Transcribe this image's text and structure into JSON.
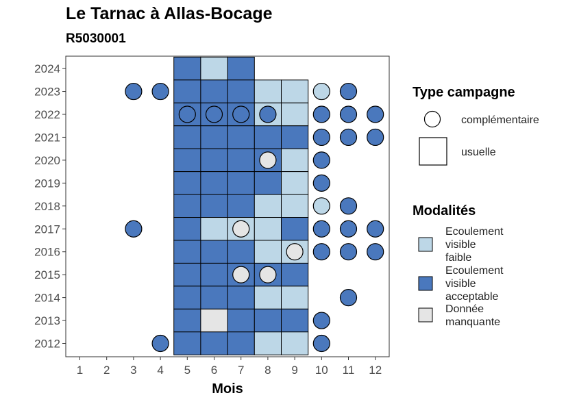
{
  "chart_data": {
    "type": "heatmap",
    "title": "Le Tarnac à Allas-Bocage",
    "subtitle": "R5030001",
    "xlabel": "Mois",
    "ylabel": "",
    "x_ticks": [
      "1",
      "2",
      "3",
      "4",
      "5",
      "6",
      "7",
      "8",
      "9",
      "10",
      "11",
      "12"
    ],
    "y_ticks": [
      "2012",
      "2013",
      "2014",
      "2015",
      "2016",
      "2017",
      "2018",
      "2019",
      "2020",
      "2021",
      "2022",
      "2023",
      "2024"
    ],
    "xlim": [
      0.5,
      12.5
    ],
    "ylim": [
      2011.5,
      2024.5
    ],
    "grid": false,
    "legend_position": "right",
    "colors": {
      "faible": "#bdd7e7",
      "acceptable": "#4a78bd",
      "manquante": "#e5e5e5"
    },
    "legends": {
      "type": {
        "title": "Type campagne",
        "items": [
          {
            "key": "complementaire",
            "label": "complémentaire",
            "shape": "circle"
          },
          {
            "key": "usuelle",
            "label": "usuelle",
            "shape": "square"
          }
        ]
      },
      "modalites": {
        "title": "Modalités",
        "items": [
          {
            "key": "faible",
            "label_lines": [
              "Ecoulement",
              "visible",
              "faible"
            ]
          },
          {
            "key": "acceptable",
            "label_lines": [
              "Ecoulement",
              "visible",
              "acceptable"
            ]
          },
          {
            "key": "manquante",
            "label_lines": [
              "Donnée",
              "manquante"
            ]
          }
        ]
      }
    },
    "squares": [
      {
        "year": 2024,
        "month": 5,
        "mod": "acceptable"
      },
      {
        "year": 2024,
        "month": 6,
        "mod": "faible"
      },
      {
        "year": 2024,
        "month": 7,
        "mod": "acceptable"
      },
      {
        "year": 2023,
        "month": 5,
        "mod": "acceptable"
      },
      {
        "year": 2023,
        "month": 6,
        "mod": "acceptable"
      },
      {
        "year": 2023,
        "month": 7,
        "mod": "acceptable"
      },
      {
        "year": 2023,
        "month": 8,
        "mod": "faible"
      },
      {
        "year": 2023,
        "month": 9,
        "mod": "faible"
      },
      {
        "year": 2022,
        "month": 5,
        "mod": "acceptable"
      },
      {
        "year": 2022,
        "month": 6,
        "mod": "acceptable"
      },
      {
        "year": 2022,
        "month": 7,
        "mod": "acceptable"
      },
      {
        "year": 2022,
        "month": 8,
        "mod": "faible"
      },
      {
        "year": 2022,
        "month": 9,
        "mod": "faible"
      },
      {
        "year": 2021,
        "month": 5,
        "mod": "acceptable"
      },
      {
        "year": 2021,
        "month": 6,
        "mod": "acceptable"
      },
      {
        "year": 2021,
        "month": 7,
        "mod": "acceptable"
      },
      {
        "year": 2021,
        "month": 8,
        "mod": "acceptable"
      },
      {
        "year": 2021,
        "month": 9,
        "mod": "acceptable"
      },
      {
        "year": 2020,
        "month": 5,
        "mod": "acceptable"
      },
      {
        "year": 2020,
        "month": 6,
        "mod": "acceptable"
      },
      {
        "year": 2020,
        "month": 7,
        "mod": "acceptable"
      },
      {
        "year": 2020,
        "month": 8,
        "mod": "acceptable"
      },
      {
        "year": 2020,
        "month": 9,
        "mod": "faible"
      },
      {
        "year": 2019,
        "month": 5,
        "mod": "acceptable"
      },
      {
        "year": 2019,
        "month": 6,
        "mod": "acceptable"
      },
      {
        "year": 2019,
        "month": 7,
        "mod": "acceptable"
      },
      {
        "year": 2019,
        "month": 8,
        "mod": "acceptable"
      },
      {
        "year": 2019,
        "month": 9,
        "mod": "faible"
      },
      {
        "year": 2018,
        "month": 5,
        "mod": "acceptable"
      },
      {
        "year": 2018,
        "month": 6,
        "mod": "acceptable"
      },
      {
        "year": 2018,
        "month": 7,
        "mod": "acceptable"
      },
      {
        "year": 2018,
        "month": 8,
        "mod": "faible"
      },
      {
        "year": 2018,
        "month": 9,
        "mod": "faible"
      },
      {
        "year": 2017,
        "month": 5,
        "mod": "acceptable"
      },
      {
        "year": 2017,
        "month": 6,
        "mod": "faible"
      },
      {
        "year": 2017,
        "month": 7,
        "mod": "faible"
      },
      {
        "year": 2017,
        "month": 8,
        "mod": "faible"
      },
      {
        "year": 2017,
        "month": 9,
        "mod": "acceptable"
      },
      {
        "year": 2016,
        "month": 5,
        "mod": "acceptable"
      },
      {
        "year": 2016,
        "month": 6,
        "mod": "acceptable"
      },
      {
        "year": 2016,
        "month": 7,
        "mod": "acceptable"
      },
      {
        "year": 2016,
        "month": 8,
        "mod": "faible"
      },
      {
        "year": 2016,
        "month": 9,
        "mod": "faible"
      },
      {
        "year": 2015,
        "month": 5,
        "mod": "acceptable"
      },
      {
        "year": 2015,
        "month": 6,
        "mod": "acceptable"
      },
      {
        "year": 2015,
        "month": 7,
        "mod": "acceptable"
      },
      {
        "year": 2015,
        "month": 8,
        "mod": "acceptable"
      },
      {
        "year": 2015,
        "month": 9,
        "mod": "acceptable"
      },
      {
        "year": 2014,
        "month": 5,
        "mod": "acceptable"
      },
      {
        "year": 2014,
        "month": 6,
        "mod": "acceptable"
      },
      {
        "year": 2014,
        "month": 7,
        "mod": "acceptable"
      },
      {
        "year": 2014,
        "month": 8,
        "mod": "faible"
      },
      {
        "year": 2014,
        "month": 9,
        "mod": "faible"
      },
      {
        "year": 2013,
        "month": 5,
        "mod": "acceptable"
      },
      {
        "year": 2013,
        "month": 6,
        "mod": "manquante"
      },
      {
        "year": 2013,
        "month": 7,
        "mod": "acceptable"
      },
      {
        "year": 2013,
        "month": 8,
        "mod": "acceptable"
      },
      {
        "year": 2013,
        "month": 9,
        "mod": "acceptable"
      },
      {
        "year": 2012,
        "month": 5,
        "mod": "acceptable"
      },
      {
        "year": 2012,
        "month": 6,
        "mod": "acceptable"
      },
      {
        "year": 2012,
        "month": 7,
        "mod": "acceptable"
      },
      {
        "year": 2012,
        "month": 8,
        "mod": "faible"
      },
      {
        "year": 2012,
        "month": 9,
        "mod": "faible"
      }
    ],
    "circles": [
      {
        "year": 2023,
        "month": 3,
        "mod": "acceptable"
      },
      {
        "year": 2023,
        "month": 4,
        "mod": "acceptable"
      },
      {
        "year": 2023,
        "month": 10,
        "mod": "faible"
      },
      {
        "year": 2023,
        "month": 11,
        "mod": "acceptable"
      },
      {
        "year": 2022,
        "month": 5,
        "mod": "acceptable"
      },
      {
        "year": 2022,
        "month": 6,
        "mod": "acceptable"
      },
      {
        "year": 2022,
        "month": 7,
        "mod": "acceptable"
      },
      {
        "year": 2022,
        "month": 8,
        "mod": "acceptable"
      },
      {
        "year": 2022,
        "month": 10,
        "mod": "acceptable"
      },
      {
        "year": 2022,
        "month": 11,
        "mod": "acceptable"
      },
      {
        "year": 2022,
        "month": 12,
        "mod": "acceptable"
      },
      {
        "year": 2021,
        "month": 10,
        "mod": "acceptable"
      },
      {
        "year": 2021,
        "month": 11,
        "mod": "acceptable"
      },
      {
        "year": 2021,
        "month": 12,
        "mod": "acceptable"
      },
      {
        "year": 2020,
        "month": 8,
        "mod": "manquante"
      },
      {
        "year": 2020,
        "month": 10,
        "mod": "acceptable"
      },
      {
        "year": 2019,
        "month": 10,
        "mod": "acceptable"
      },
      {
        "year": 2018,
        "month": 10,
        "mod": "faible"
      },
      {
        "year": 2018,
        "month": 11,
        "mod": "acceptable"
      },
      {
        "year": 2017,
        "month": 3,
        "mod": "acceptable"
      },
      {
        "year": 2017,
        "month": 7,
        "mod": "manquante"
      },
      {
        "year": 2017,
        "month": 10,
        "mod": "acceptable"
      },
      {
        "year": 2017,
        "month": 11,
        "mod": "acceptable"
      },
      {
        "year": 2017,
        "month": 12,
        "mod": "acceptable"
      },
      {
        "year": 2016,
        "month": 9,
        "mod": "manquante"
      },
      {
        "year": 2016,
        "month": 10,
        "mod": "acceptable"
      },
      {
        "year": 2016,
        "month": 11,
        "mod": "acceptable"
      },
      {
        "year": 2016,
        "month": 12,
        "mod": "acceptable"
      },
      {
        "year": 2015,
        "month": 7,
        "mod": "manquante"
      },
      {
        "year": 2015,
        "month": 8,
        "mod": "manquante"
      },
      {
        "year": 2014,
        "month": 11,
        "mod": "acceptable"
      },
      {
        "year": 2013,
        "month": 10,
        "mod": "acceptable"
      },
      {
        "year": 2012,
        "month": 4,
        "mod": "acceptable"
      },
      {
        "year": 2012,
        "month": 10,
        "mod": "acceptable"
      }
    ]
  }
}
